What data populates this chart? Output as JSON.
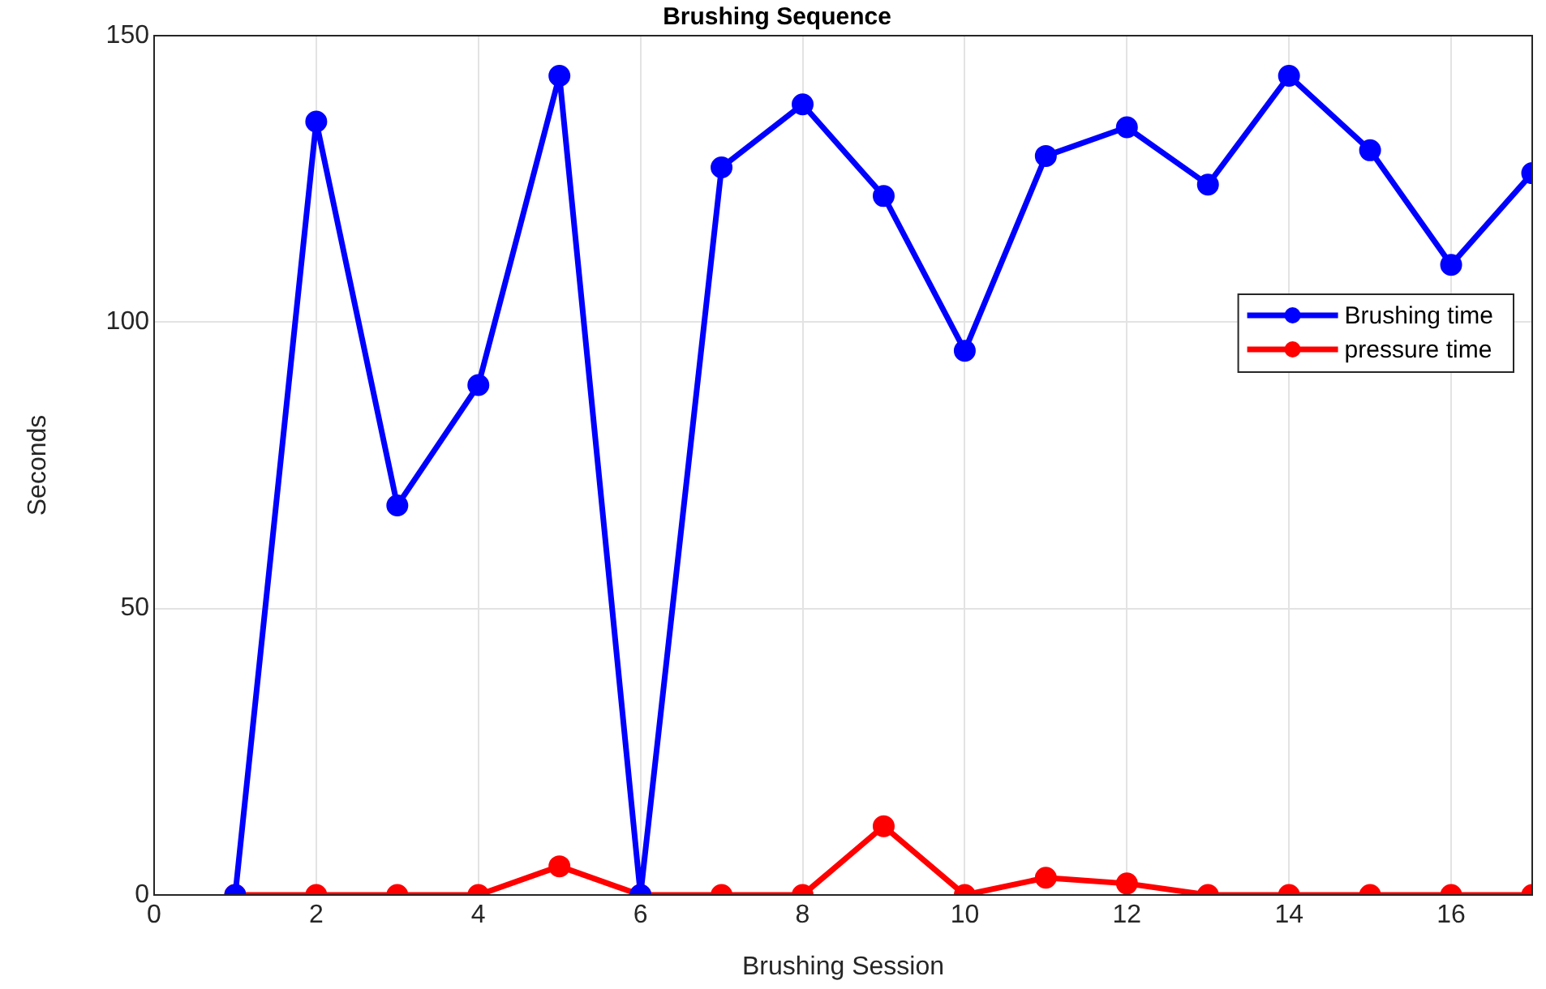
{
  "chart_data": {
    "type": "line",
    "title": "Brushing Sequence",
    "xlabel": "Brushing Session",
    "ylabel": "Seconds",
    "x": [
      1,
      2,
      3,
      4,
      5,
      6,
      7,
      8,
      9,
      10,
      11,
      12,
      13,
      14,
      15,
      16,
      17
    ],
    "series": [
      {
        "name": "Brushing time",
        "color": "#0000ff",
        "values": [
          0,
          135,
          68,
          89,
          143,
          0,
          127,
          138,
          122,
          95,
          129,
          134,
          124,
          143,
          130,
          110,
          126
        ]
      },
      {
        "name": "pressure time",
        "color": "#ff0000",
        "values": [
          0,
          0,
          0,
          0,
          5,
          0,
          0,
          0,
          12,
          0,
          3,
          2,
          0,
          0,
          0,
          0,
          0
        ]
      }
    ],
    "xlim": [
      0,
      17
    ],
    "xticks": [
      0,
      2,
      4,
      6,
      8,
      10,
      12,
      14,
      16
    ],
    "ylim": [
      0,
      150
    ],
    "yticks": [
      0,
      50,
      100,
      150
    ],
    "grid": true,
    "legend": "right",
    "marker": "circle",
    "line_style": "solid"
  }
}
